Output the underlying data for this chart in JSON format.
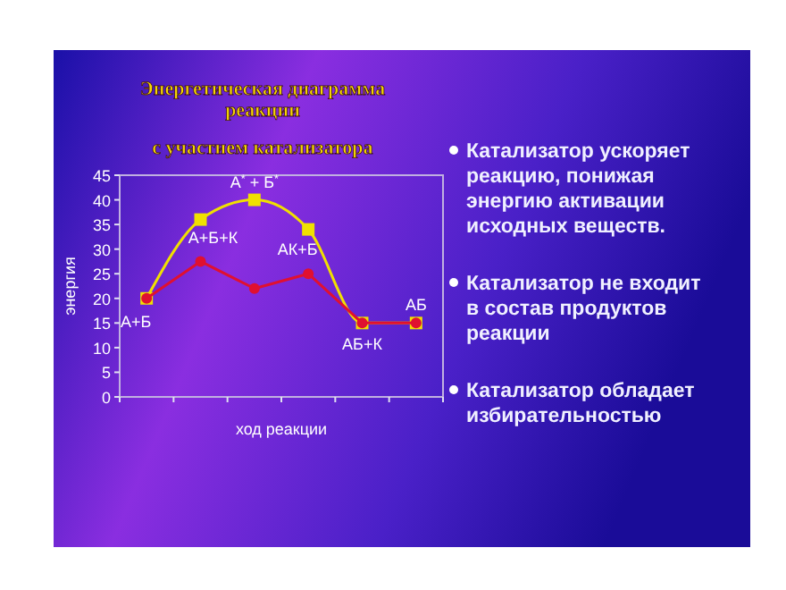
{
  "chart_data": {
    "type": "line",
    "title": "Энергетическая диаграмма реакции",
    "subtitle": "с участием катализатора",
    "xlabel": "ход реакции",
    "ylabel": "энергия",
    "categories": [
      null,
      null,
      null,
      null,
      null,
      null
    ],
    "series": [
      {
        "color": "#f0e000",
        "values": [
          20,
          36,
          40,
          34,
          15,
          15
        ],
        "marker": "square",
        "value_labels": [
          "А+Б",
          "А+Б+К",
          "А$^{*}$ + Б$^{*}$",
          "АК+Б",
          "АБ+К",
          "АБ"
        ]
      },
      {
        "color": "#e01030",
        "values": [
          20,
          27.5,
          22,
          25,
          15,
          15
        ],
        "marker": "circle"
      }
    ],
    "ylim": [
      0,
      45
    ],
    "yticks": [
      0,
      5,
      10,
      15,
      20,
      25,
      30,
      35,
      40,
      45
    ],
    "grid": false,
    "annotations": [
      "Катализатор ускоряет реакцию, понижая энергию активации исходных веществ.",
      "Катализатор не входит в состав продуктов реакции",
      "Катализатор обладает избирательностью"
    ]
  }
}
